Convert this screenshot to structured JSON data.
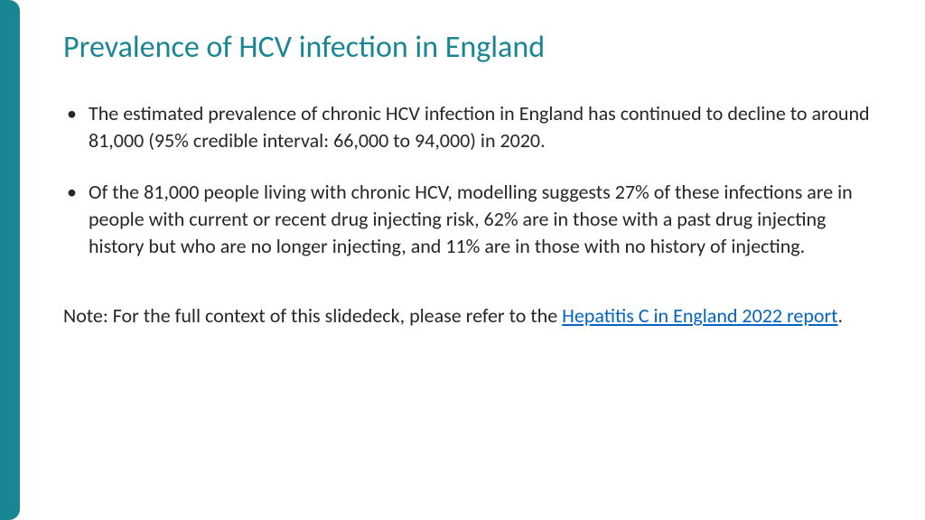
{
  "accent_color": "#1a8693",
  "link_color": "#0563c1",
  "text_color": "#262626",
  "background_color": "#ffffff",
  "title": "Prevalence of HCV infection in England",
  "bullets": [
    "The estimated prevalence of chronic HCV infection in England has continued to decline to around 81,000 (95% credible interval: 66,000 to 94,000) in 2020.",
    "Of the 81,000 people living with chronic HCV, modelling suggests 27% of these infections are in people with current or recent drug injecting risk, 62% are in those with a past drug injecting history but who are no longer injecting, and 11% are in those with no history of injecting."
  ],
  "note": {
    "prefix": "Note: For the full context of this slidedeck, please refer to the ",
    "link_text": "Hepatitis C in England 2022 report",
    "suffix": "."
  }
}
